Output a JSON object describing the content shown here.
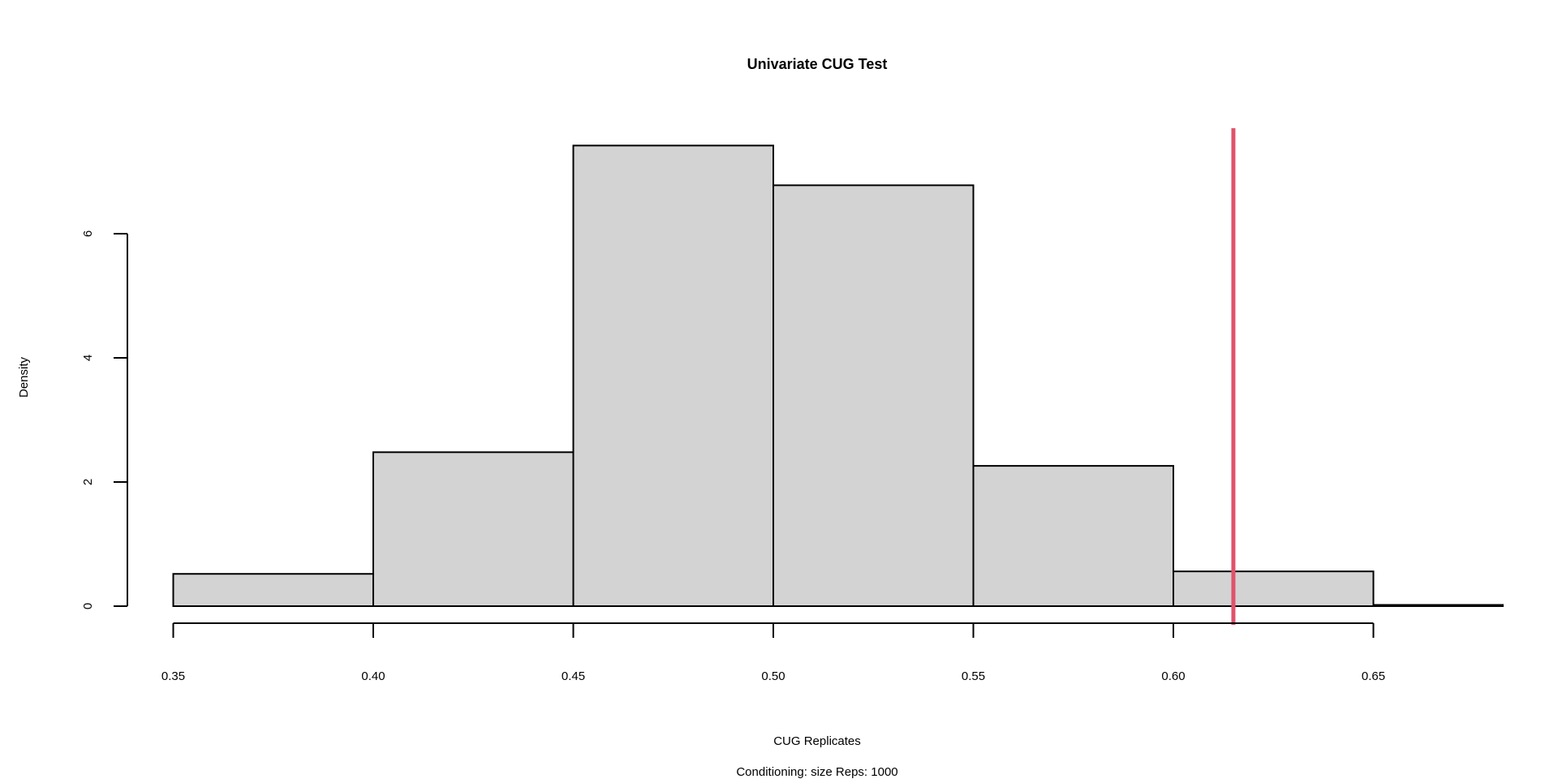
{
  "chart_data": {
    "type": "bar",
    "title": "Univariate CUG Test",
    "xlabel": "CUG Replicates",
    "ylabel": "Density",
    "subtitle": "Conditioning: size Reps: 1000",
    "bins": [
      {
        "start": 0.35,
        "end": 0.4,
        "density": 0.52
      },
      {
        "start": 0.4,
        "end": 0.45,
        "density": 2.48
      },
      {
        "start": 0.45,
        "end": 0.5,
        "density": 7.42
      },
      {
        "start": 0.5,
        "end": 0.55,
        "density": 6.78
      },
      {
        "start": 0.55,
        "end": 0.6,
        "density": 2.26
      },
      {
        "start": 0.6,
        "end": 0.65,
        "density": 0.56
      },
      {
        "start": 0.65,
        "end": 0.7,
        "density": 0.02
      }
    ],
    "xticks": [
      "0.35",
      "0.40",
      "0.45",
      "0.50",
      "0.55",
      "0.60",
      "0.65"
    ],
    "yticks": [
      "0",
      "2",
      "4",
      "6"
    ],
    "observed_line": {
      "x": 0.615,
      "color": "#DF536B"
    },
    "bar_fill": "#D3D3D3",
    "grid": false
  }
}
